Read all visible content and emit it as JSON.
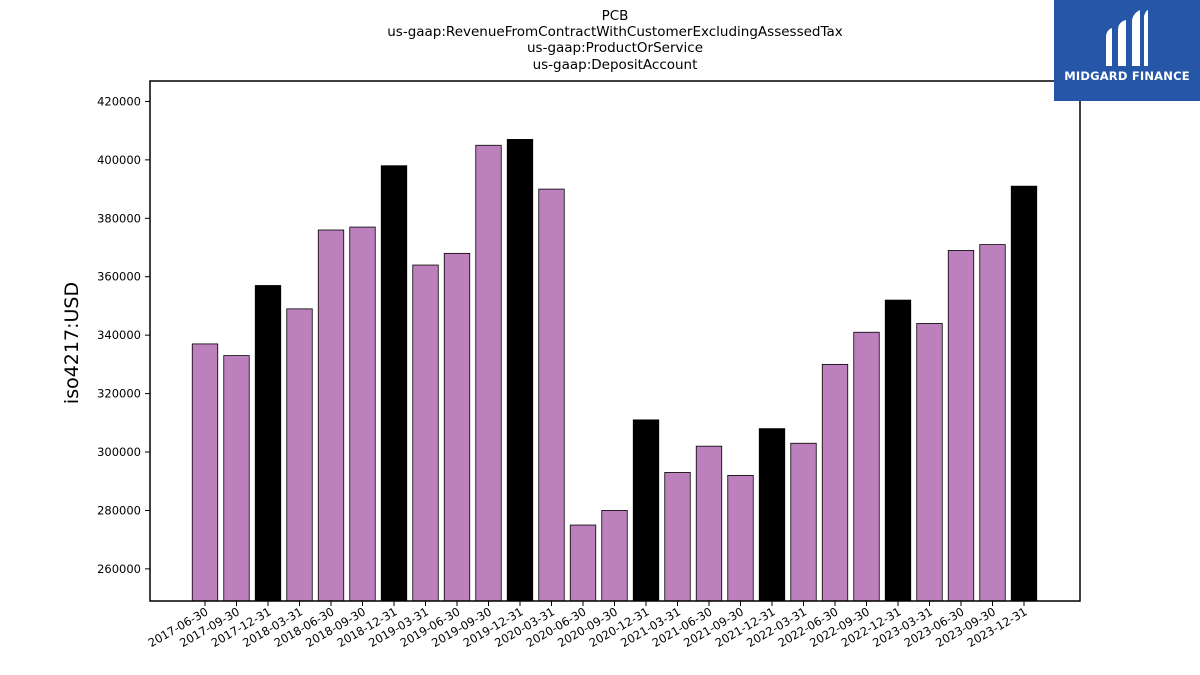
{
  "chart_data": {
    "type": "bar",
    "title_lines": [
      "PCB",
      "us-gaap:RevenueFromContractWithCustomerExcludingAssessedTax",
      "us-gaap:ProductOrService",
      "us-gaap:DepositAccount"
    ],
    "xlabel": "",
    "ylabel": "iso4217:USD",
    "ylim": [
      249000,
      427000
    ],
    "yticks": [
      260000,
      280000,
      300000,
      320000,
      340000,
      360000,
      380000,
      400000,
      420000
    ],
    "categories": [
      "2017-06-30",
      "2017-09-30",
      "2017-12-31",
      "2018-03-31",
      "2018-06-30",
      "2018-09-30",
      "2018-12-31",
      "2019-03-31",
      "2019-06-30",
      "2019-09-30",
      "2019-12-31",
      "2020-03-31",
      "2020-06-30",
      "2020-09-30",
      "2020-12-31",
      "2021-03-31",
      "2021-06-30",
      "2021-09-30",
      "2021-12-31",
      "2022-03-31",
      "2022-06-30",
      "2022-09-30",
      "2022-12-31",
      "2023-03-31",
      "2023-06-30",
      "2023-09-30",
      "2023-12-31"
    ],
    "values": [
      337000,
      333000,
      357000,
      349000,
      376000,
      377000,
      398000,
      364000,
      368000,
      405000,
      407000,
      390000,
      275000,
      280000,
      311000,
      293000,
      302000,
      292000,
      308000,
      303000,
      330000,
      341000,
      352000,
      344000,
      369000,
      371000,
      391000
    ],
    "colors": {
      "quarter": "#bc80bd",
      "year_end": "#000000",
      "edge": "#000000"
    },
    "grid": false,
    "legend": "none"
  },
  "logo": {
    "text": "MIDGARD FINANCE",
    "bg": "#2556a8"
  }
}
